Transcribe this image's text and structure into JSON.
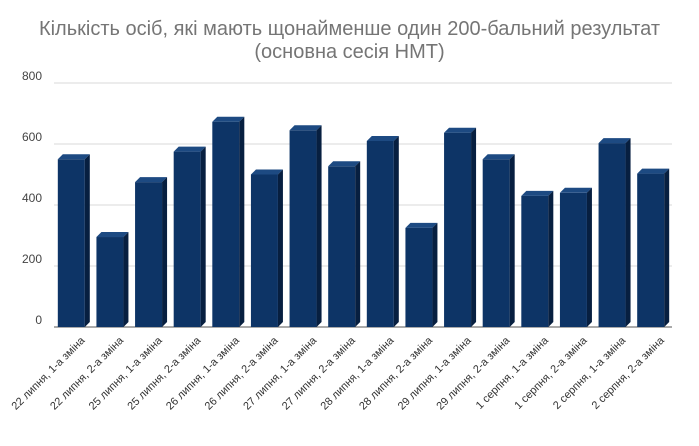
{
  "chart_data": {
    "type": "bar",
    "title_line1": "Кількість осіб, які мають щонайменше один 200-бальний результат",
    "title_line2": "(основна сесія НМТ)",
    "categories": [
      "22 липня, 1-а зміна",
      "22 липня, 2-а зміна",
      "25 липня, 1-а зміна",
      "25 липня, 2-а зміна",
      "26 липня, 1-а зміна",
      "26 липня, 2-а зміна",
      "27 липня, 1-а зміна",
      "27 липня, 2-а зміна",
      "28 липня, 1-а зміна",
      "28 липня, 2-а зміна",
      "29 липня, 1-а зміна",
      "29 липня, 2-а зміна",
      "1 серпня, 1-а зміна",
      "1 серпня, 2-а зміна",
      "2 серпня, 1-а зміна",
      "2 серпня, 2-а зміна"
    ],
    "values": [
      550,
      295,
      475,
      575,
      673,
      500,
      645,
      527,
      610,
      325,
      637,
      550,
      430,
      440,
      603,
      503
    ],
    "ylim": [
      0,
      800
    ],
    "yticks": [
      0,
      200,
      400,
      600,
      800
    ],
    "grid": true,
    "legend": "none",
    "bar_color": "#0d3466",
    "bar_top_color": "#1d4a82",
    "bar_side_color": "#071f40"
  }
}
